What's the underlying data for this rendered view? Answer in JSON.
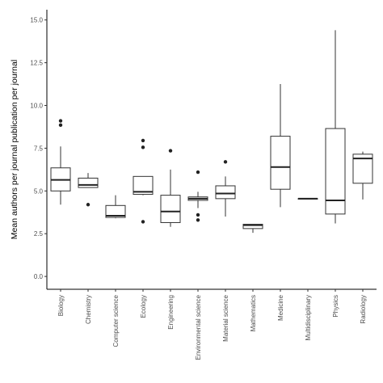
{
  "chart_data": {
    "type": "box",
    "title": "",
    "xlabel": "",
    "ylabel": "Mean authors per journal publication per journal",
    "ylim": [
      -0.75,
      15.6
    ],
    "yticks": [
      0,
      2.5,
      5,
      7.5,
      10,
      12.5,
      15
    ],
    "ytick_labels": [
      "0.0",
      "2.5",
      "5.0",
      "7.5",
      "10.0",
      "12.5",
      "15.0"
    ],
    "grid": false,
    "categories": [
      "Biology",
      "Chemistry",
      "Computer science",
      "Ecology",
      "Engineering",
      "Environmental science",
      "Material science",
      "Mathematics",
      "Medicine",
      "Multidisciplinary",
      "Physics",
      "Radiology"
    ],
    "boxes": [
      {
        "category": "Biology",
        "whisker_low": 4.2,
        "q1": 5.0,
        "median": 5.65,
        "q3": 6.35,
        "whisker_high": 7.6,
        "outliers": [
          8.85,
          9.1
        ]
      },
      {
        "category": "Chemistry",
        "whisker_low": 5.2,
        "q1": 5.2,
        "median": 5.35,
        "q3": 5.75,
        "whisker_high": 6.05,
        "outliers": [
          4.2
        ]
      },
      {
        "category": "Computer science",
        "whisker_low": 3.4,
        "q1": 3.45,
        "median": 3.55,
        "q3": 4.15,
        "whisker_high": 4.75,
        "outliers": []
      },
      {
        "category": "Ecology",
        "whisker_low": 4.75,
        "q1": 4.8,
        "median": 4.95,
        "q3": 5.85,
        "whisker_high": 5.85,
        "outliers": [
          3.2,
          7.55,
          7.95
        ]
      },
      {
        "category": "Engineering",
        "whisker_low": 2.9,
        "q1": 3.15,
        "median": 3.8,
        "q3": 4.75,
        "whisker_high": 6.25,
        "outliers": [
          7.35
        ]
      },
      {
        "category": "Environmental science",
        "whisker_low": 4.0,
        "q1": 4.45,
        "median": 4.55,
        "q3": 4.65,
        "whisker_high": 4.95,
        "outliers": [
          3.3,
          3.6,
          6.1
        ]
      },
      {
        "category": "Material science",
        "whisker_low": 3.5,
        "q1": 4.55,
        "median": 4.85,
        "q3": 5.3,
        "whisker_high": 5.85,
        "outliers": [
          6.7
        ]
      },
      {
        "category": "Mathematics",
        "whisker_low": 2.55,
        "q1": 2.8,
        "median": 3.0,
        "q3": 3.05,
        "whisker_high": 3.05,
        "outliers": []
      },
      {
        "category": "Medicine",
        "whisker_low": 4.05,
        "q1": 5.1,
        "median": 6.4,
        "q3": 8.2,
        "whisker_high": 11.25,
        "outliers": []
      },
      {
        "category": "Multidisciplinary",
        "whisker_low": 4.55,
        "q1": 4.55,
        "median": 4.55,
        "q3": 4.55,
        "whisker_high": 4.55,
        "outliers": []
      },
      {
        "category": "Physics",
        "whisker_low": 3.1,
        "q1": 3.65,
        "median": 4.45,
        "q3": 8.65,
        "whisker_high": 14.4,
        "outliers": []
      },
      {
        "category": "Radiology",
        "whisker_low": 4.5,
        "q1": 5.45,
        "median": 6.9,
        "q3": 7.15,
        "whisker_high": 7.3,
        "outliers": []
      }
    ]
  }
}
